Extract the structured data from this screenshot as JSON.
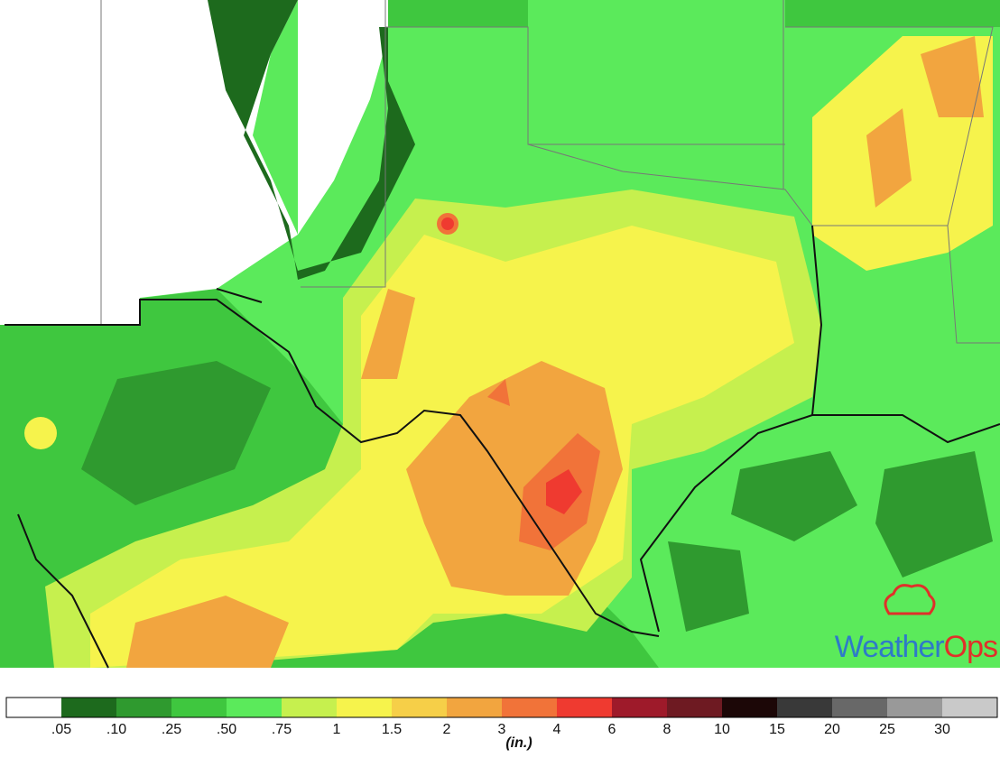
{
  "logo": {
    "part1": "Weather",
    "part2": "Ops"
  },
  "legend": {
    "unit": "(in.)",
    "labels": [
      ".05",
      ".10",
      ".25",
      ".50",
      ".75",
      "1",
      "1.5",
      "2",
      "3",
      "4",
      "6",
      "8",
      "10",
      "15",
      "20",
      "25",
      "30"
    ],
    "colors": [
      "#ffffff",
      "#1d6a1d",
      "#2f9a2f",
      "#3fc73f",
      "#5bea5b",
      "#c6f04e",
      "#f6f34c",
      "#f6cf48",
      "#f2a53f",
      "#f17339",
      "#ef3a30",
      "#9e1a2a",
      "#6e1a22",
      "#1c0707",
      "#393939",
      "#686868",
      "#999999",
      "#c9c9c9"
    ]
  }
}
